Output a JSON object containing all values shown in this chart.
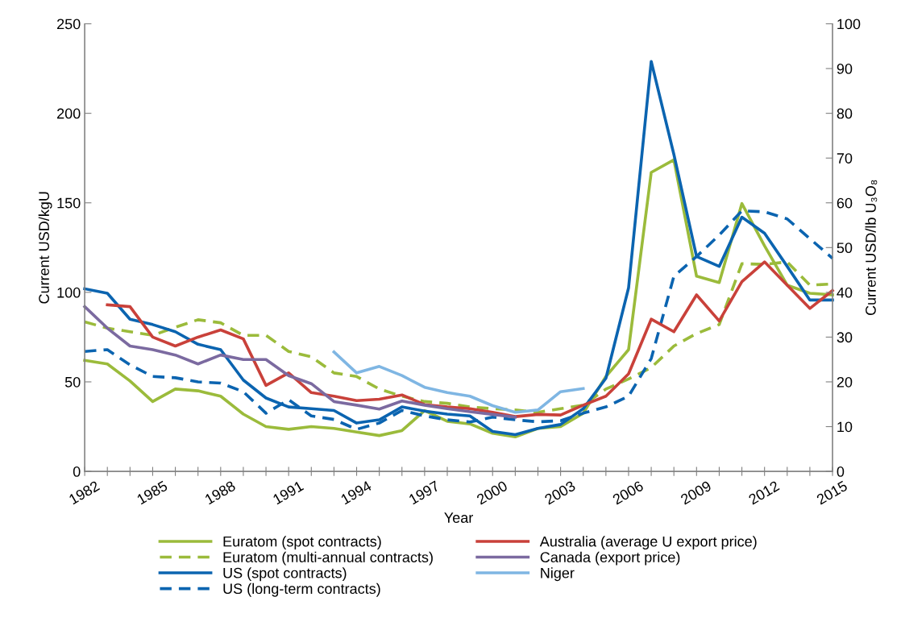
{
  "chart_data": {
    "type": "line",
    "xlabel": "Year",
    "ylabel": "Current USD/kgU",
    "y2label": "Current USD/lb U₃O₈",
    "xlim": [
      1982,
      2015
    ],
    "xticks": [
      1982,
      {
        "value": 1983,
        "label": null
      },
      {
        "value": 1984,
        "label": null
      },
      1985,
      {
        "value": 1986,
        "label": null
      },
      {
        "value": 1987,
        "label": null
      },
      1988,
      {
        "value": 1989,
        "label": null
      },
      {
        "value": 1990,
        "label": null
      },
      1991,
      {
        "value": 1992,
        "label": null
      },
      {
        "value": 1993,
        "label": null
      },
      1994,
      {
        "value": 1995,
        "label": null
      },
      {
        "value": 1996,
        "label": null
      },
      1997,
      {
        "value": 1998,
        "label": null
      },
      {
        "value": 1999,
        "label": null
      },
      2000,
      {
        "value": 2001,
        "label": null
      },
      {
        "value": 2002,
        "label": null
      },
      2003,
      {
        "value": 2004,
        "label": null
      },
      {
        "value": 2005,
        "label": null
      },
      2006,
      {
        "value": 2007,
        "label": null
      },
      {
        "value": 2008,
        "label": null
      },
      2009,
      {
        "value": 2010,
        "label": null
      },
      {
        "value": 2011,
        "label": null
      },
      2012,
      {
        "value": 2013,
        "label": null
      },
      {
        "value": 2014,
        "label": null
      },
      2015
    ],
    "ylim": [
      0,
      250
    ],
    "yticks": [
      0,
      50,
      100,
      150,
      200,
      250
    ],
    "y2lim": [
      0,
      100
    ],
    "y2ticks": [
      0,
      10,
      20,
      30,
      40,
      50,
      60,
      70,
      80,
      90,
      100
    ],
    "grid": false,
    "legend": "bottom",
    "marker": "none",
    "x": [
      1982,
      1983,
      1984,
      1985,
      1986,
      1987,
      1988,
      1989,
      1990,
      1991,
      1992,
      1993,
      1994,
      1995,
      1996,
      1997,
      1998,
      1999,
      2000,
      2001,
      2002,
      2003,
      2004,
      2005,
      2006,
      2007,
      2008,
      2009,
      2010,
      2011,
      2012,
      2013,
      2014,
      2015
    ],
    "series": [
      {
        "name": "Euratom (spot contracts)",
        "color": "#9bbb3b",
        "line_style": "solid",
        "values": [
          62,
          60,
          50.5,
          39,
          46,
          45,
          42,
          32,
          25,
          23.5,
          25,
          24,
          22,
          20,
          22.8,
          34,
          28,
          26.5,
          21.3,
          19.3,
          24,
          25,
          32.5,
          53,
          68,
          167,
          174,
          109,
          105.5,
          149.6,
          126,
          104,
          99.5,
          98.6
        ]
      },
      {
        "name": "Euratom (multi-annual contracts)",
        "color": "#9bbb3b",
        "line_style": "dashed",
        "values": [
          83.5,
          80,
          78,
          76,
          80.5,
          84.7,
          83,
          76,
          76,
          67,
          64,
          55,
          53,
          46,
          42,
          39,
          38,
          36,
          35,
          34.3,
          33,
          35,
          37,
          46,
          51.6,
          58,
          70,
          77,
          82,
          116,
          115.6,
          117,
          104,
          104.7
        ]
      },
      {
        "name": "US (spot contracts)",
        "color": "#0b64b0",
        "line_style": "solid",
        "values": [
          102,
          99.5,
          85,
          82,
          78,
          71,
          68,
          51,
          41,
          36,
          35,
          34,
          27,
          28.8,
          36,
          33.7,
          32,
          31,
          22.3,
          20.5,
          24,
          26.2,
          35,
          52,
          102.5,
          229,
          177,
          120,
          114.5,
          142,
          133,
          114.5,
          95.7,
          95.7
        ]
      },
      {
        "name": "US (long-term contracts)",
        "color": "#0b64b0",
        "line_style": "dashed",
        "values": [
          67,
          68,
          59.5,
          53,
          52.3,
          50,
          49.3,
          44.5,
          32.5,
          40,
          31,
          29,
          23.5,
          27,
          34,
          31,
          28.8,
          27.6,
          30.3,
          28.8,
          27.7,
          28.3,
          32.5,
          36,
          42,
          63,
          109,
          120,
          132,
          145.5,
          145,
          141,
          130,
          119
        ]
      },
      {
        "name": "Australia (average U export price)",
        "color": "#c9413a",
        "line_style": "solid",
        "values": [
          null,
          93,
          92,
          75,
          70,
          75,
          79,
          74,
          48,
          55,
          44,
          42,
          39.5,
          40.3,
          42.7,
          37.3,
          36,
          35,
          33,
          30.6,
          31.8,
          31.5,
          37,
          42,
          54.5,
          85,
          78,
          98.6,
          84,
          106,
          117,
          104,
          91,
          101
        ]
      },
      {
        "name": "Canada (export price)",
        "color": "#7b6aa0",
        "line_style": "solid",
        "values": [
          92,
          80,
          70,
          68,
          65,
          60,
          65,
          62.5,
          62.5,
          53.5,
          49,
          39,
          37,
          34.8,
          39.3,
          37,
          35,
          33.3,
          31.8,
          30.3,
          null,
          null,
          null,
          null,
          null,
          null,
          null,
          null,
          null,
          null,
          null,
          null,
          null,
          null
        ]
      },
      {
        "name": "Niger",
        "color": "#7fb6e3",
        "line_style": "solid",
        "values": [
          null,
          null,
          null,
          null,
          null,
          null,
          null,
          null,
          null,
          null,
          null,
          66.7,
          55,
          58.6,
          53.5,
          47,
          44,
          42,
          36.7,
          33,
          34.3,
          44.5,
          46.3,
          null,
          null,
          null,
          null,
          null,
          null,
          null,
          null,
          null,
          null,
          null
        ]
      }
    ]
  }
}
